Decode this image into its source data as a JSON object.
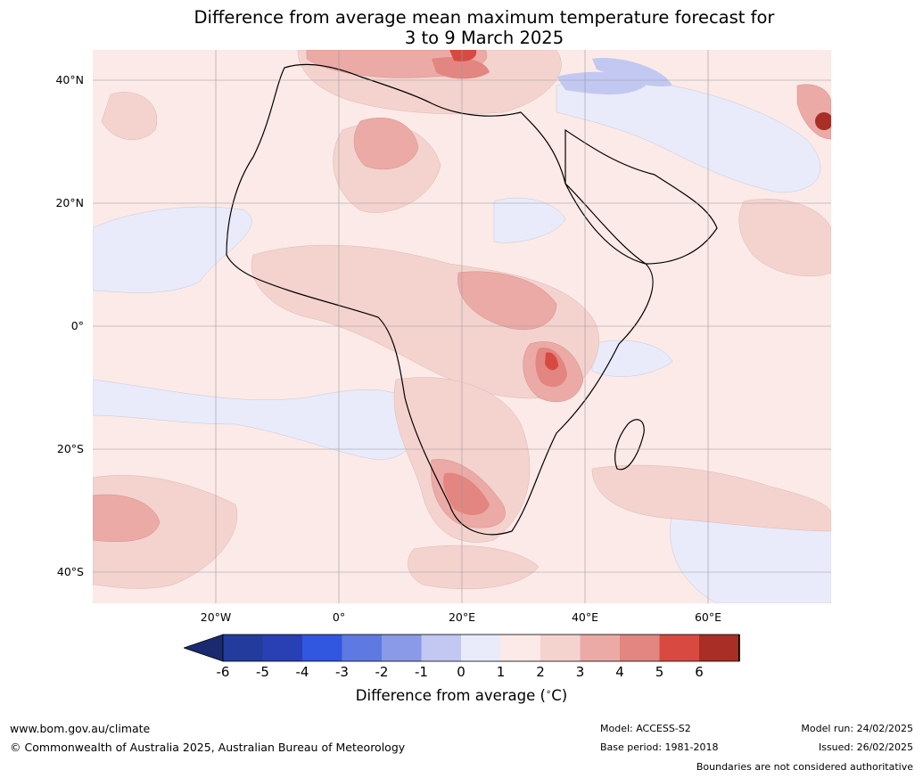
{
  "title_line1": "Difference from average mean maximum temperature forecast for",
  "title_line2": "3 to 9 March 2025",
  "map": {
    "region": "Africa and surrounding seas",
    "lat_range": [
      -45,
      45
    ],
    "lon_range": [
      -40,
      80
    ],
    "lat_ticks": [
      "40°N",
      "20°N",
      "0°",
      "20°S",
      "40°S"
    ],
    "lon_ticks": [
      "20°W",
      "0°",
      "20°E",
      "40°E",
      "60°E"
    ]
  },
  "colorbar": {
    "ticks": [
      "-6",
      "-5",
      "-4",
      "-3",
      "-2",
      "-1",
      "0",
      "1",
      "2",
      "3",
      "4",
      "5",
      "6"
    ],
    "colors": [
      "#233b9c",
      "#2840b4",
      "#3156e0",
      "#5f79e3",
      "#8a9ae8",
      "#c2c8f2",
      "#e9ebfb",
      "#fbeae7",
      "#f4d3cf",
      "#ebaaa6",
      "#e38581",
      "#d84a41",
      "#a82e26"
    ],
    "under_color": "#1a2a70",
    "over_color": "#6b1c17",
    "label": "Difference from average ($^\\circ$C)"
  },
  "footer": {
    "site": "www.bom.gov.au/climate",
    "copyright": "© Commonwealth of Australia 2025, Australian Bureau of Meteorology",
    "model": "Model: ACCESS-S2",
    "base_period": "Base period: 1981-2018",
    "model_run": "Model run: 24/02/2025",
    "issued": "Issued: 26/02/2025",
    "disclaimer": "Boundaries are not considered authoritative"
  }
}
